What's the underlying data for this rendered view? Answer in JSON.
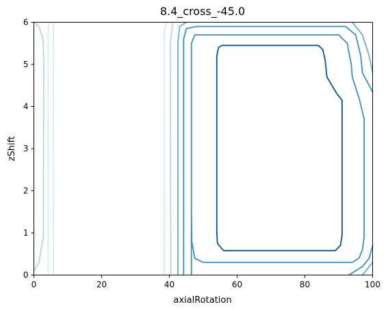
{
  "chart_data": {
    "type": "contour",
    "title": "8.4_cross_-45.0",
    "xlabel": "axialRotation",
    "ylabel": "zShift",
    "xlim": [
      0,
      100
    ],
    "ylim": [
      0,
      6
    ],
    "xticks": [
      "0",
      "20",
      "40",
      "60",
      "80",
      "100"
    ],
    "yticks": [
      "0",
      "1",
      "2",
      "3",
      "4",
      "5",
      "6"
    ],
    "grid": false,
    "colormap": "Blues",
    "levels": [
      {
        "color": "#dbe9f6",
        "paths": [
          [
            [
              4.2,
              0
            ],
            [
              4.2,
              5.85
            ],
            [
              4.5,
              6
            ]
          ],
          [
            [
              5.8,
              0
            ],
            [
              5.8,
              6
            ]
          ],
          [
            [
              38.5,
              0
            ],
            [
              38.5,
              5.8
            ],
            [
              39,
              6
            ]
          ]
        ]
      },
      {
        "color": "#b7d4ea",
        "paths": [
          [
            [
              0,
              0.1
            ],
            [
              1.5,
              0.3
            ],
            [
              2.8,
              0.9
            ],
            [
              2.9,
              5.1
            ],
            [
              2.7,
              5.6
            ],
            [
              1.5,
              5.9
            ],
            [
              0,
              6
            ]
          ],
          [
            [
              40.4,
              0
            ],
            [
              40.3,
              5.5
            ],
            [
              41,
              6
            ]
          ]
        ]
      },
      {
        "color": "#6aaed6",
        "paths": [
          [
            [
              42.5,
              0
            ],
            [
              42.5,
              5.5
            ],
            [
              43,
              5.9
            ],
            [
              45,
              6
            ]
          ],
          [
            [
              94,
              6
            ],
            [
              97,
              5.7
            ],
            [
              99,
              5.2
            ],
            [
              100,
              4.8
            ]
          ],
          [
            [
              97,
              0
            ],
            [
              99,
              0.2
            ],
            [
              100,
              0.3
            ]
          ]
        ]
      },
      {
        "color": "#3d8dc4",
        "paths": [
          [
            [
              44.2,
              0
            ],
            [
              44.2,
              5.6
            ],
            [
              45,
              5.85
            ],
            [
              48,
              5.9
            ],
            [
              92,
              5.9
            ],
            [
              95,
              5.7
            ],
            [
              96.5,
              5.2
            ],
            [
              97,
              4.8
            ],
            [
              100,
              4.35
            ]
          ],
          [
            [
              93,
              0
            ],
            [
              97,
              0.2
            ],
            [
              99,
              0.4
            ],
            [
              100,
              0.7
            ]
          ],
          [
            [
              46.5,
              0
            ],
            [
              46.5,
              5.5
            ],
            [
              47.5,
              5.7
            ],
            [
              90,
              5.7
            ],
            [
              92.5,
              5.5
            ],
            [
              93.7,
              5.0
            ],
            [
              94,
              4.7
            ],
            [
              96,
              4.2
            ],
            [
              97.5,
              3.7
            ],
            [
              97.5,
              0.9
            ],
            [
              97,
              0.6
            ],
            [
              96,
              0.4
            ],
            [
              94,
              0.3
            ],
            [
              50,
              0.3
            ],
            [
              47.5,
              0.4
            ],
            [
              46.6,
              0.8
            ],
            [
              46.5,
              1.5
            ],
            [
              46.5,
              5.5
            ]
          ]
        ]
      },
      {
        "color": "#08519c",
        "paths": [
          [
            [
              55.5,
              5.45
            ],
            [
              84,
              5.45
            ],
            [
              85.3,
              5.35
            ],
            [
              86,
              5.1
            ],
            [
              86.5,
              4.7
            ],
            [
              88,
              4.5
            ],
            [
              89.5,
              4.3
            ],
            [
              91,
              4.15
            ],
            [
              91,
              0.95
            ],
            [
              90.5,
              0.7
            ],
            [
              89,
              0.58
            ],
            [
              56,
              0.58
            ],
            [
              54.2,
              0.75
            ],
            [
              54,
              1.0
            ],
            [
              54,
              5.2
            ],
            [
              54.5,
              5.4
            ],
            [
              55.5,
              5.45
            ]
          ]
        ]
      }
    ]
  }
}
